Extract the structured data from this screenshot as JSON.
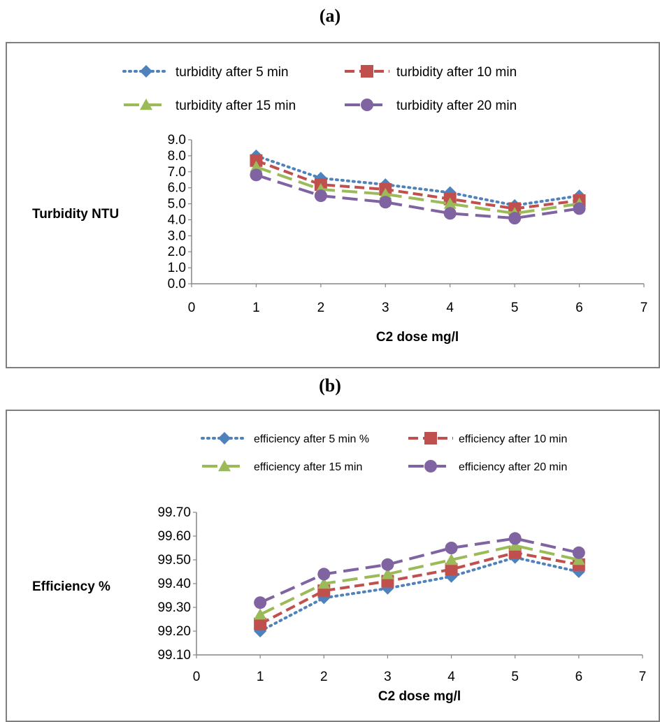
{
  "panels": {
    "a_label": "(a)",
    "b_label": "(b)"
  },
  "chart_data": [
    {
      "type": "line",
      "xlabel": "C2 dose mg/l",
      "ylabel": "Turbidity NTU",
      "xlim": [
        0,
        7
      ],
      "ylim": [
        0,
        9
      ],
      "x_ticks": [
        "0",
        "1",
        "2",
        "3",
        "4",
        "5",
        "6",
        "7"
      ],
      "y_ticks": [
        "0.0",
        "1.0",
        "2.0",
        "3.0",
        "4.0",
        "5.0",
        "6.0",
        "7.0",
        "8.0",
        "9.0"
      ],
      "legend_position": "top",
      "x": [
        1,
        2,
        3,
        4,
        5,
        6
      ],
      "series": [
        {
          "name": "turbidity after 5 min",
          "color": "#4f81bd",
          "dash": "dotted",
          "marker": "diamond",
          "values": [
            8.0,
            6.6,
            6.2,
            5.7,
            4.9,
            5.5
          ]
        },
        {
          "name": "turbidity after 10 min",
          "color": "#c0504d",
          "dash": "dashed",
          "marker": "square",
          "values": [
            7.7,
            6.2,
            5.9,
            5.3,
            4.7,
            5.2
          ]
        },
        {
          "name": "turbidity after 15 min",
          "color": "#9bbb59",
          "dash": "longdash",
          "marker": "triangle",
          "values": [
            7.3,
            5.9,
            5.6,
            5.0,
            4.4,
            5.0
          ]
        },
        {
          "name": "turbidity after 20 min",
          "color": "#8064a2",
          "dash": "longdash",
          "marker": "circle",
          "values": [
            6.8,
            5.5,
            5.1,
            4.4,
            4.1,
            4.7
          ]
        }
      ]
    },
    {
      "type": "line",
      "xlabel": "C2 dose mg/l",
      "ylabel": "Efficiency %",
      "xlim": [
        0,
        7
      ],
      "ylim": [
        99.1,
        99.7
      ],
      "x_ticks": [
        "0",
        "1",
        "2",
        "3",
        "4",
        "5",
        "6",
        "7"
      ],
      "y_ticks": [
        "99.10",
        "99.20",
        "99.30",
        "99.40",
        "99.50",
        "99.60",
        "99.70"
      ],
      "legend_position": "top",
      "x": [
        1,
        2,
        3,
        4,
        5,
        6
      ],
      "series": [
        {
          "name": "efficiency after 5 min %",
          "color": "#4f81bd",
          "dash": "dotted",
          "marker": "diamond",
          "values": [
            99.2,
            99.34,
            99.38,
            99.43,
            99.51,
            99.45
          ]
        },
        {
          "name": "efficiency after 10 min",
          "color": "#c0504d",
          "dash": "dashed",
          "marker": "square",
          "values": [
            99.23,
            99.37,
            99.41,
            99.46,
            99.53,
            99.48
          ]
        },
        {
          "name": "efficiency after 15 min",
          "color": "#9bbb59",
          "dash": "longdash",
          "marker": "triangle",
          "values": [
            99.27,
            99.4,
            99.44,
            99.5,
            99.56,
            99.5
          ]
        },
        {
          "name": "efficiency after 20 min",
          "color": "#8064a2",
          "dash": "longdash",
          "marker": "circle",
          "values": [
            99.32,
            99.44,
            99.48,
            99.55,
            99.59,
            99.53
          ]
        }
      ]
    }
  ]
}
